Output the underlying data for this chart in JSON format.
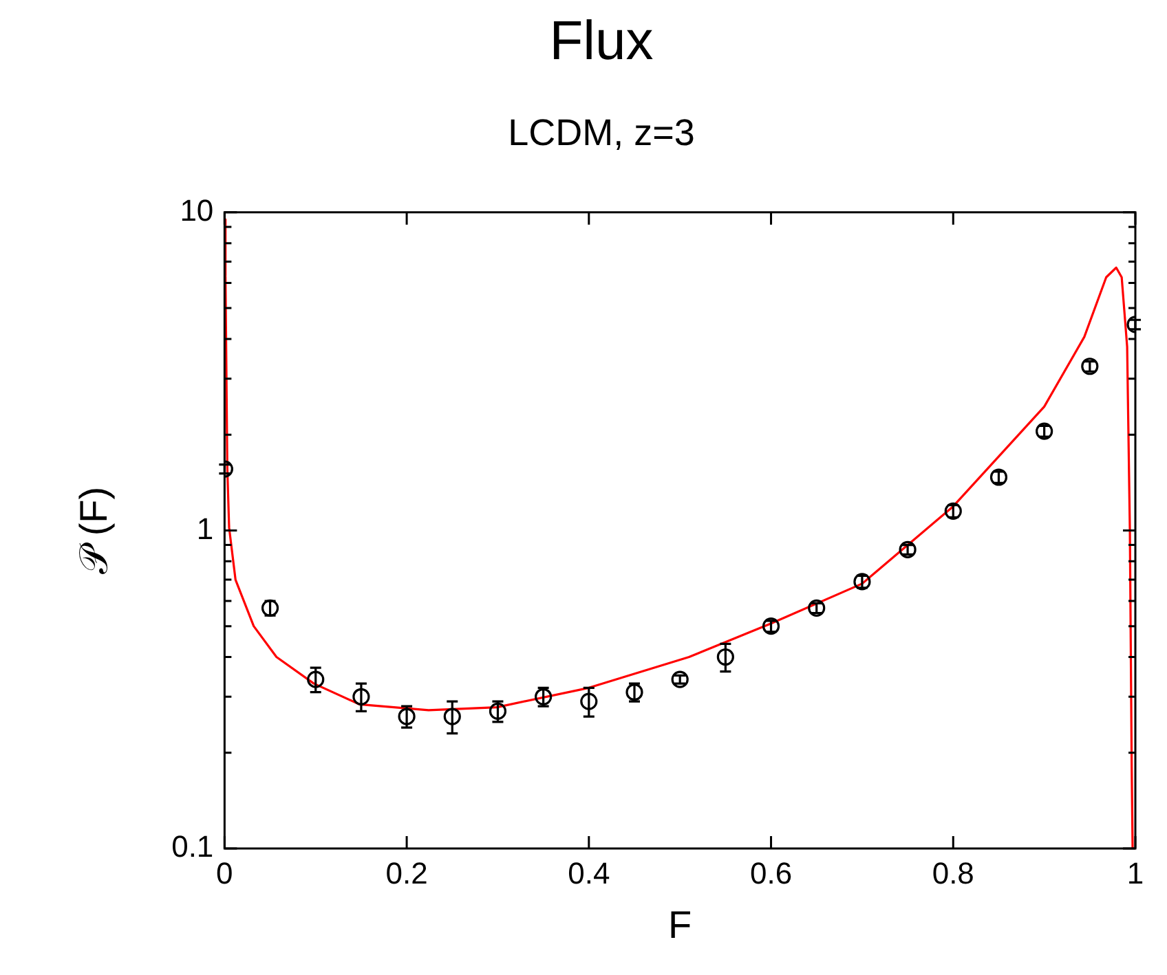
{
  "chart_data": {
    "type": "scatter",
    "title": "Flux",
    "subtitle": "LCDM, z=3",
    "xlabel": "F",
    "ylabel": "𝒫 (F)",
    "log": "y",
    "grid": false,
    "legend": false,
    "marker": "circle",
    "xlim": [
      0,
      1
    ],
    "xticks": [
      0,
      0.2,
      0.4,
      0.6,
      0.8,
      1
    ],
    "ylim": [
      0.1,
      10
    ],
    "yticks": [
      0.1,
      {
        "value": 0.2,
        "label": null
      },
      {
        "value": 0.3,
        "label": null
      },
      {
        "value": 0.4,
        "label": null
      },
      {
        "value": 0.5,
        "label": null
      },
      {
        "value": 0.6,
        "label": null
      },
      {
        "value": 0.7,
        "label": null
      },
      {
        "value": 0.8,
        "label": null
      },
      {
        "value": 0.9,
        "label": null
      },
      1,
      {
        "value": 2,
        "label": null
      },
      {
        "value": 3,
        "label": null
      },
      {
        "value": 4,
        "label": null
      },
      {
        "value": 5,
        "label": null
      },
      {
        "value": 6,
        "label": null
      },
      {
        "value": 7,
        "label": null
      },
      {
        "value": 8,
        "label": null
      },
      {
        "value": 9,
        "label": null
      },
      10
    ],
    "series": [
      {
        "color": "#000000",
        "x": [
          0,
          0.05,
          0.1,
          0.15,
          0.2,
          0.25,
          0.3,
          0.35,
          0.4,
          0.45,
          0.5,
          0.55,
          0.6,
          0.65,
          0.7,
          0.75,
          0.8,
          0.85,
          0.9,
          0.95,
          1
        ],
        "values": [
          1.56,
          0.57,
          0.34,
          0.3,
          0.26,
          0.26,
          0.27,
          0.3,
          0.29,
          0.31,
          0.34,
          0.4,
          0.5,
          0.57,
          0.69,
          0.87,
          1.15,
          1.47,
          2.05,
          3.28,
          4.44
        ],
        "errors": [
          0.05,
          0.03,
          0.03,
          0.03,
          0.02,
          0.03,
          0.02,
          0.02,
          0.03,
          0.02,
          0.01,
          0.04,
          0.02,
          0.02,
          0.03,
          0.03,
          0.05,
          0.06,
          0.08,
          0.12,
          0.15
        ]
      },
      {
        "type": "line",
        "color": "#ff0000",
        "marker": "none",
        "line_style": "solid",
        "x": [
          0.0005,
          0.001,
          0.003,
          0.005,
          0.012,
          0.032,
          0.057,
          0.098,
          0.148,
          0.224,
          0.299,
          0.4,
          0.51,
          0.6,
          0.7,
          0.8,
          0.9,
          0.944,
          0.968,
          0.979,
          0.985,
          0.991,
          0.994,
          0.996,
          0.997
        ],
        "values": [
          9.5,
          6.3,
          1.57,
          1.02,
          0.7,
          0.5,
          0.4,
          0.33,
          0.284,
          0.272,
          0.278,
          0.32,
          0.4,
          0.51,
          0.68,
          1.19,
          2.45,
          4.06,
          6.25,
          6.7,
          6.25,
          3.78,
          1.0,
          0.18,
          0.1
        ]
      }
    ]
  }
}
